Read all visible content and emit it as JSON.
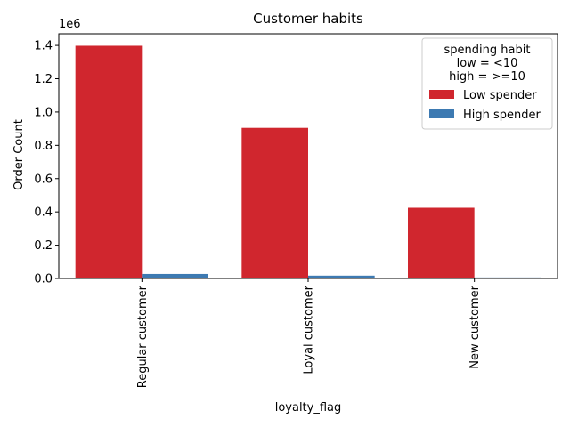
{
  "chart_data": {
    "type": "bar",
    "title": "Customer habits",
    "xlabel": "loyalty_flag",
    "ylabel": "Order Count",
    "y_offset_label": "1e6",
    "y_scale_factor": 1000000,
    "categories": [
      "Regular customer",
      "Loyal customer",
      "New customer"
    ],
    "series": [
      {
        "name": "Low spender",
        "values": [
          1398000,
          905000,
          425000
        ],
        "color": "#D0262E"
      },
      {
        "name": "High spender",
        "values": [
          27000,
          17000,
          6000
        ],
        "color": "#3D7AB2"
      }
    ],
    "ylim": [
      0,
      1470000
    ],
    "yticks": [
      0,
      200000,
      400000,
      600000,
      800000,
      1000000,
      1200000,
      1400000
    ],
    "ytick_labels": [
      "0.0",
      "0.2",
      "0.4",
      "0.6",
      "0.8",
      "1.0",
      "1.2",
      "1.4"
    ],
    "grid": false,
    "legend": {
      "title_lines": [
        "spending habit",
        "low = <10",
        "high = >=10"
      ],
      "placement": "top-right"
    }
  }
}
